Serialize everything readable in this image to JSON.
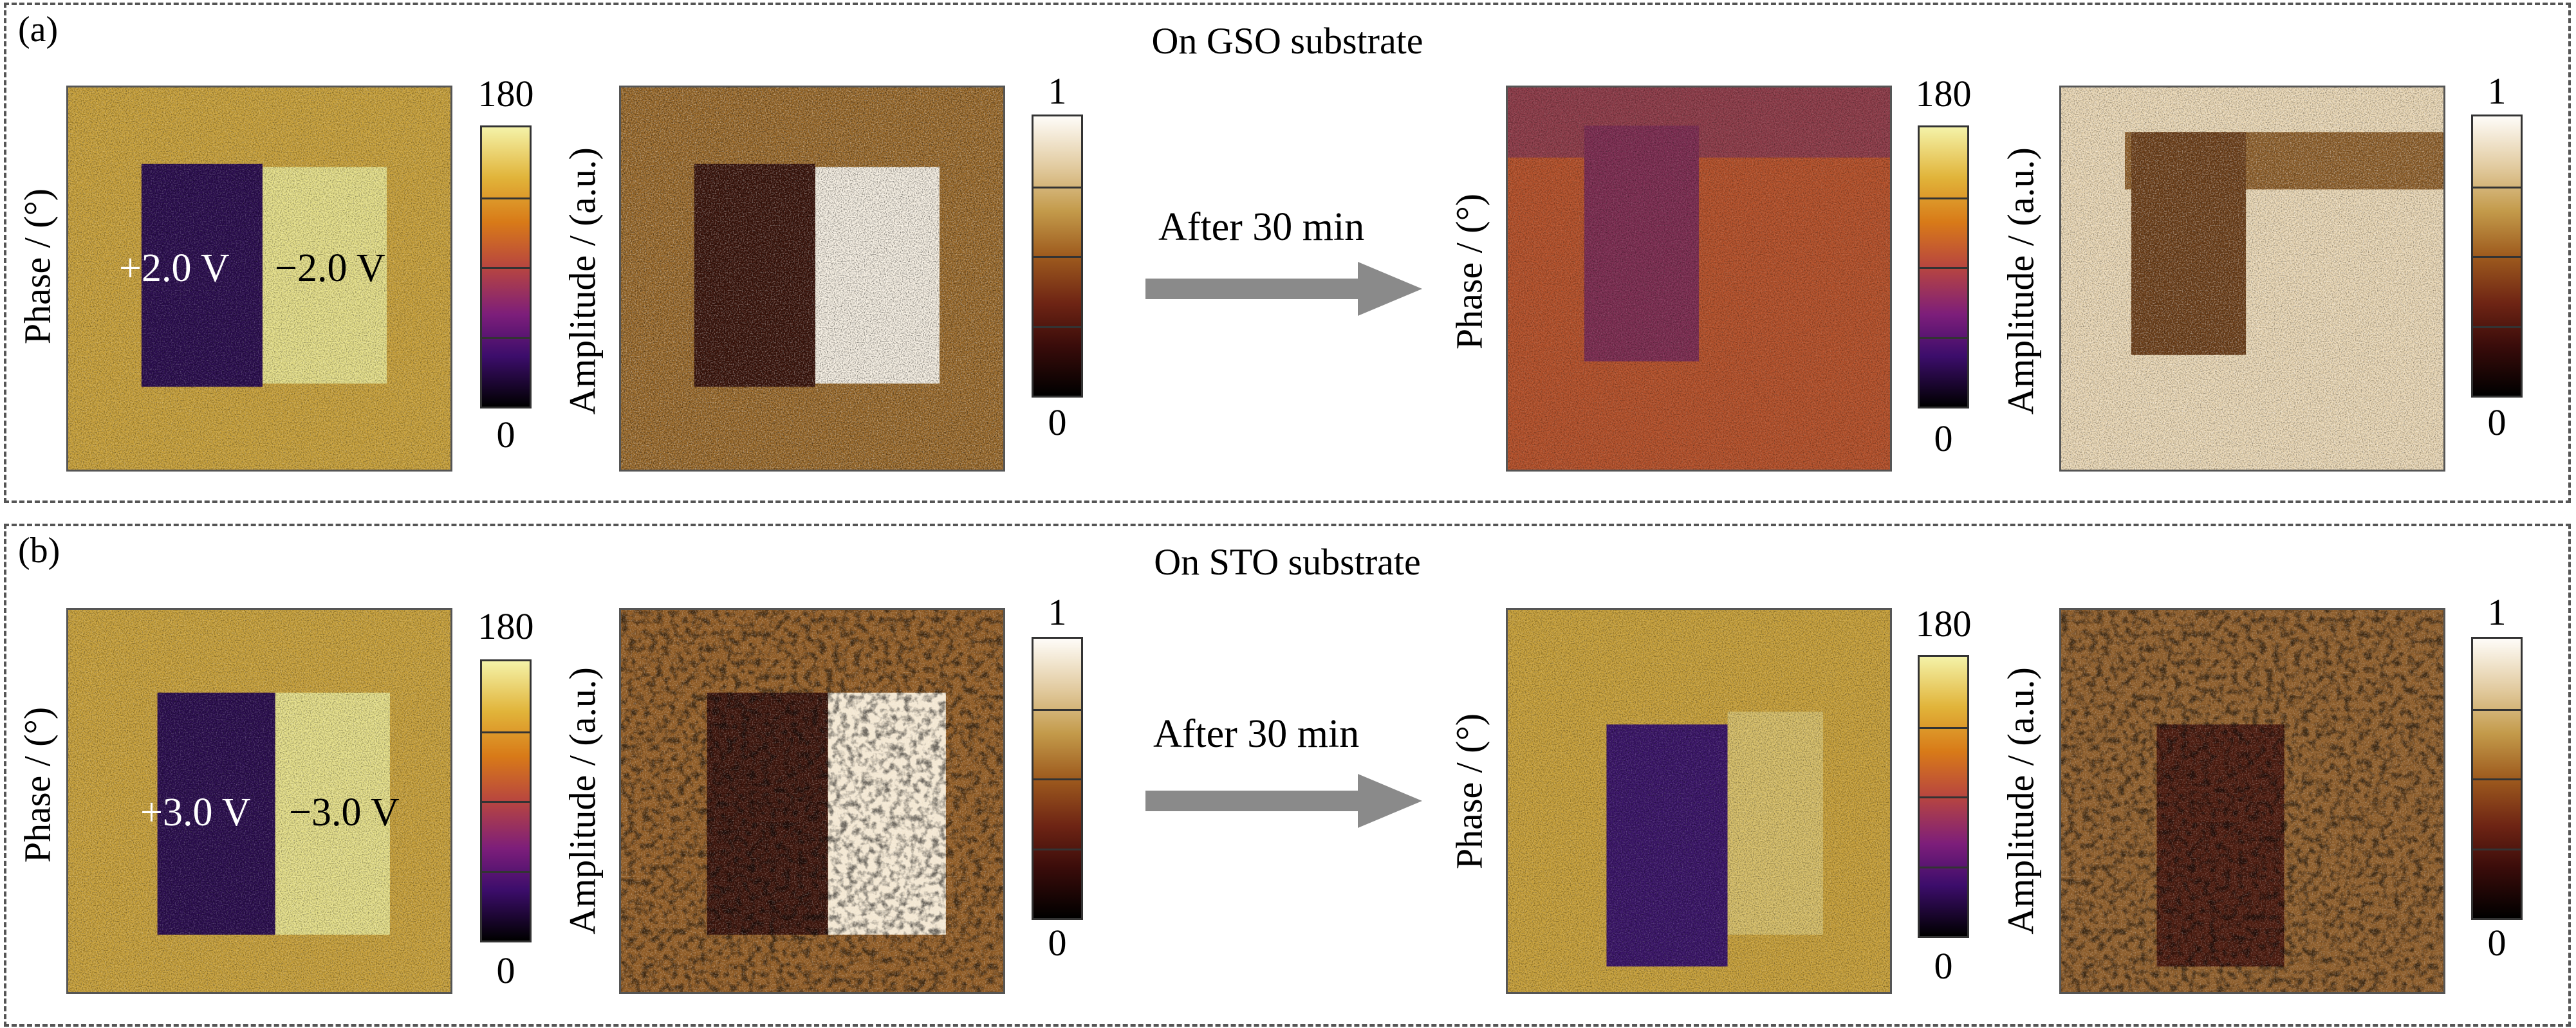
{
  "panels": {
    "a": {
      "letter": "(a)",
      "title": "On GSO substrate",
      "voltage_left": "+2.0 V",
      "voltage_right": "−2.0 V",
      "arrow_text": "After 30 min"
    },
    "b": {
      "letter": "(b)",
      "title": "On STO substrate",
      "voltage_left": "+3.0 V",
      "voltage_right": "−3.0 V",
      "arrow_text": "After 30 min"
    }
  },
  "labels": {
    "phase": "Phase / (°)",
    "amplitude": "Amplitude / (a.u.)"
  },
  "colorbars": {
    "phase": {
      "max": "180",
      "min": "0"
    },
    "amplitude": {
      "max": "1",
      "min": "0"
    }
  },
  "colors": {
    "phase_dark": "#2a0d4e",
    "phase_light": "#e6e08a",
    "phase_mid": "#c9a23c",
    "phase_orange": "#b5522c",
    "amp_dark": "#3a130a",
    "amp_light": "#f6efe2",
    "amp_mid": "#9b6a2a",
    "arrow": "#8a8a8a"
  }
}
